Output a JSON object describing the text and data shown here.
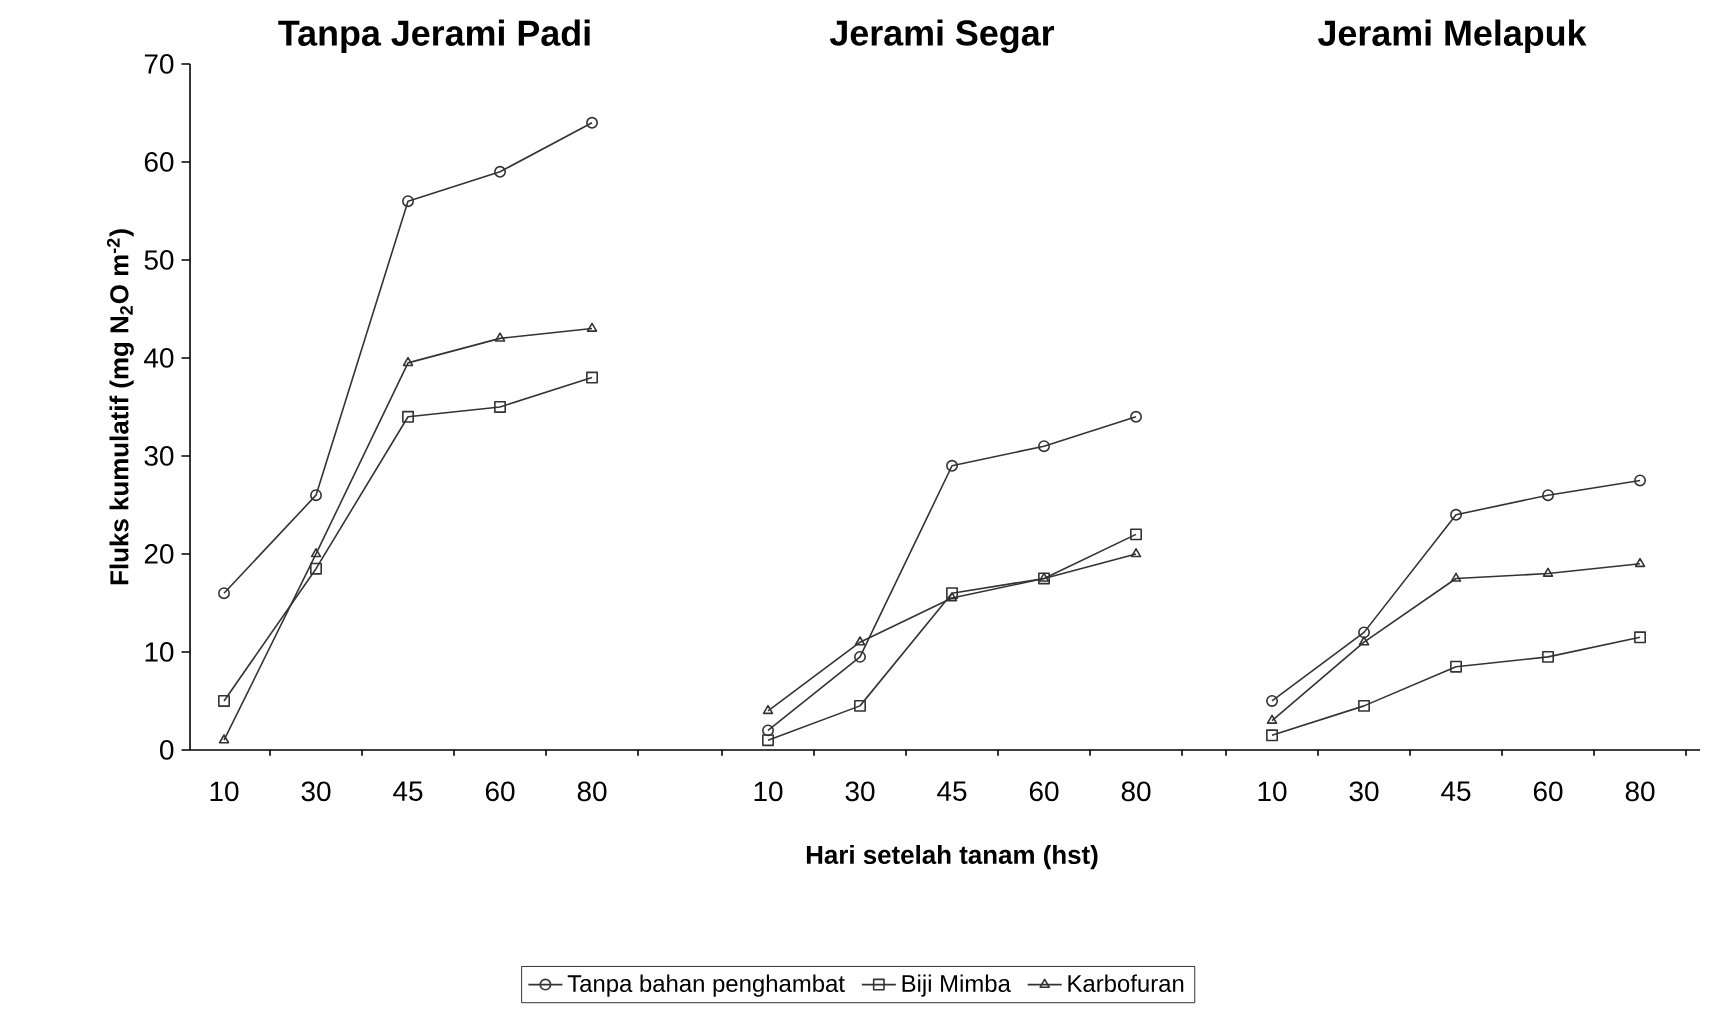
{
  "chart_data": [
    {
      "type": "line",
      "title": "Tanpa Jerami Padi",
      "ylabel": "Fluks kumulatif (mg N$_{2}$O m$^{-2}$)",
      "categories": [
        "10",
        "30",
        "45",
        "60",
        "80"
      ],
      "ylim": [
        0,
        70
      ],
      "yticks": [
        0,
        10,
        20,
        30,
        40,
        50,
        60,
        70
      ],
      "grid": false,
      "series": [
        {
          "color": "#333333",
          "marker": "circle",
          "values": [
            16,
            26,
            56,
            59,
            64
          ]
        },
        {
          "color": "#333333",
          "marker": "square",
          "values": [
            5,
            18.5,
            34,
            35,
            38
          ]
        },
        {
          "color": "#333333",
          "marker": "triangle",
          "values": [
            1,
            20,
            39.5,
            42,
            43
          ]
        }
      ]
    },
    {
      "type": "line",
      "title": "Jerami Segar",
      "xlabel": "Hari setelah tanam (hst)",
      "categories": [
        "10",
        "30",
        "45",
        "60",
        "80"
      ],
      "ylim": [
        0,
        70
      ],
      "yticks": [
        0,
        10,
        20,
        30,
        40,
        50,
        60,
        70
      ],
      "tick_labels": "x",
      "grid": false,
      "legend": "bottom",
      "series": [
        {
          "name": "Tanpa bahan penghambat",
          "color": "#333333",
          "marker": "circle",
          "values": [
            2,
            9.5,
            29,
            31,
            34
          ]
        },
        {
          "name": "Biji Mimba",
          "color": "#333333",
          "marker": "square",
          "values": [
            1,
            4.5,
            16,
            17.5,
            22
          ]
        },
        {
          "name": "Karbofuran",
          "color": "#333333",
          "marker": "triangle",
          "values": [
            4,
            11,
            15.5,
            17.5,
            20
          ]
        }
      ]
    },
    {
      "type": "line",
      "title": "Jerami Melapuk",
      "categories": [
        "10",
        "30",
        "45",
        "60",
        "80"
      ],
      "ylim": [
        0,
        70
      ],
      "yticks": [
        0,
        10,
        20,
        30,
        40,
        50,
        60,
        70
      ],
      "tick_labels": "x",
      "grid": false,
      "series": [
        {
          "color": "#333333",
          "marker": "circle",
          "values": [
            5,
            12,
            24,
            26,
            27.5
          ]
        },
        {
          "color": "#333333",
          "marker": "square",
          "values": [
            1.5,
            4.5,
            8.5,
            9.5,
            11.5
          ]
        },
        {
          "color": "#333333",
          "marker": "triangle",
          "values": [
            3,
            11,
            17.5,
            18,
            19
          ]
        }
      ]
    }
  ]
}
